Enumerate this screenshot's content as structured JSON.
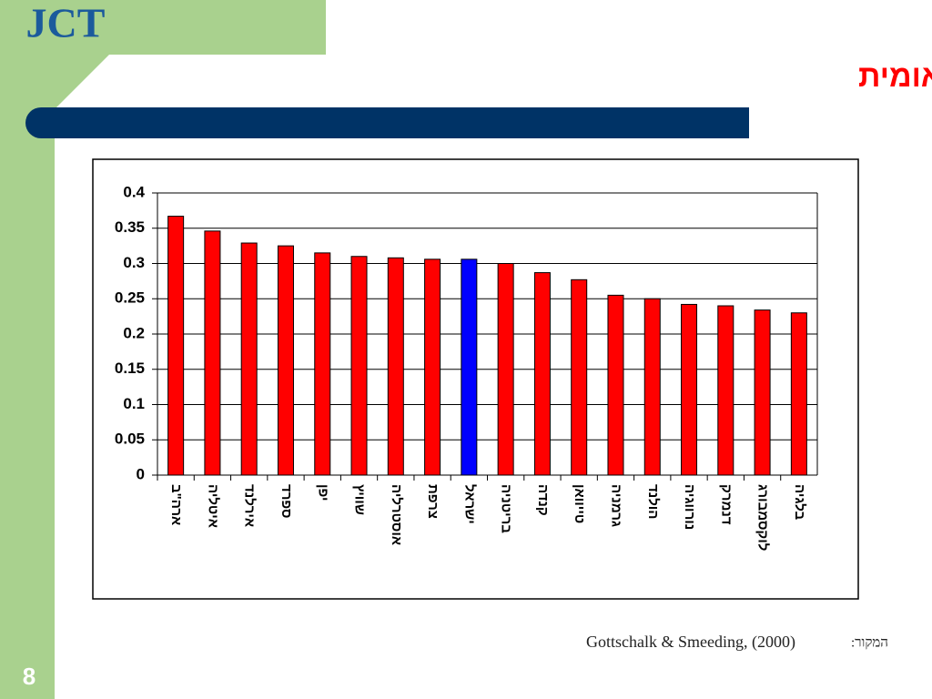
{
  "logo": "JCT",
  "page_number": "8",
  "source": {
    "label": "המקור:",
    "text": "Gottschalk & Smeeding, (2000)"
  },
  "chart_data": {
    "type": "bar",
    "title": "אי השוויון בהכנסה נטו, השוואה בינלאומית",
    "categories": [
      "ארה\"ב",
      "איטליה",
      "אירלנד",
      "ספרד",
      "יפן",
      "שוויץ",
      "אוסטרליה",
      "צרפת",
      "ישראל",
      "בריטניה",
      "קנדה",
      "טייוואן",
      "גרמניה",
      "הולנד",
      "נורווגיה",
      "דנמרק",
      "לוקסמבורג",
      "בלגיה"
    ],
    "values": [
      0.367,
      0.346,
      0.329,
      0.325,
      0.315,
      0.31,
      0.308,
      0.306,
      0.306,
      0.3,
      0.287,
      0.277,
      0.255,
      0.25,
      0.242,
      0.24,
      0.234,
      0.23
    ],
    "colors": [
      "#ff0000",
      "#ff0000",
      "#ff0000",
      "#ff0000",
      "#ff0000",
      "#ff0000",
      "#ff0000",
      "#ff0000",
      "#0000ff",
      "#ff0000",
      "#ff0000",
      "#ff0000",
      "#ff0000",
      "#ff0000",
      "#ff0000",
      "#ff0000",
      "#ff0000",
      "#ff0000"
    ],
    "ylim": [
      0,
      0.4
    ],
    "yticks": [
      0,
      0.05,
      0.1,
      0.15,
      0.2,
      0.25,
      0.3,
      0.35,
      0.4
    ],
    "grid": true
  }
}
